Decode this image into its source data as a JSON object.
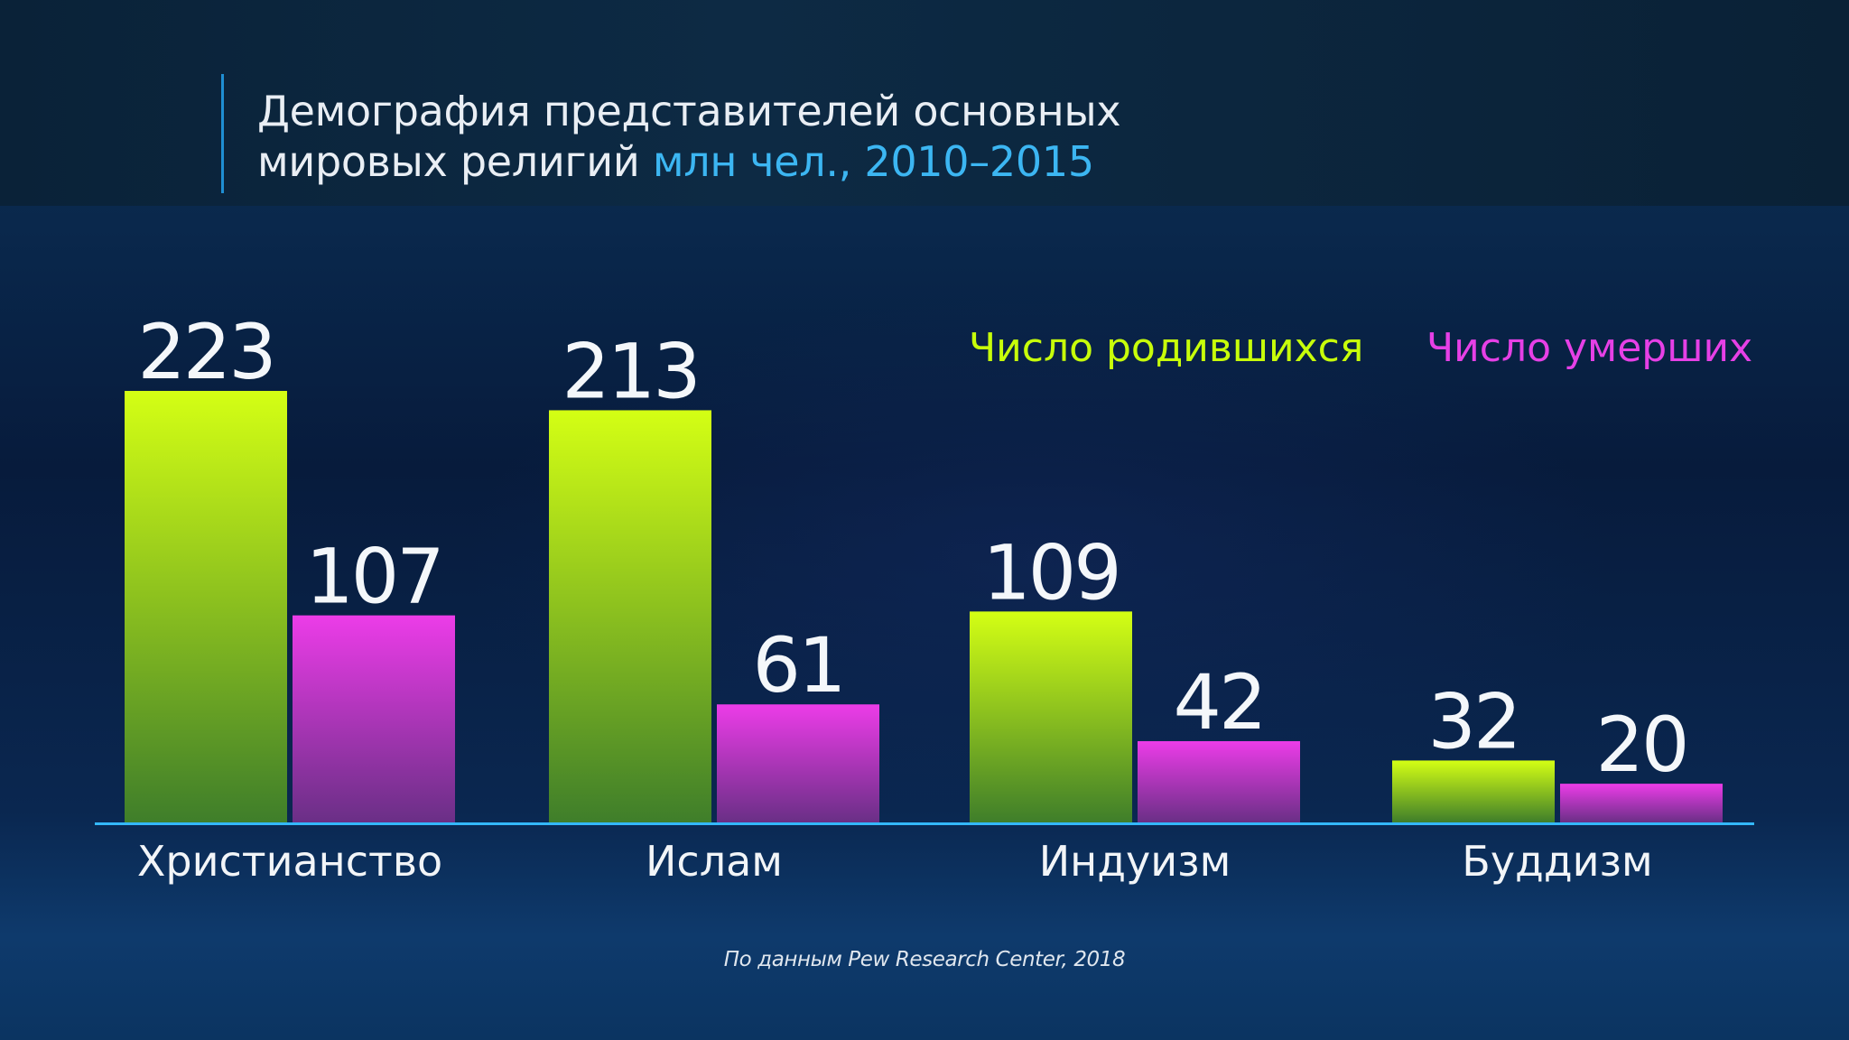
{
  "title": {
    "line1": "Демография представителей основных",
    "line2_main": "мировых религий",
    "line2_accent": "млн чел., 2010–2015"
  },
  "colors": {
    "births": "#d4ff14",
    "deaths": "#ec3ce8",
    "axis": "#34b8ff",
    "accent_text": "#3cb6f2"
  },
  "chart_data": {
    "type": "bar",
    "categories": [
      "Христианство",
      "Ислам",
      "Индуизм",
      "Буддизм"
    ],
    "series": [
      {
        "name": "Число родившихся",
        "values": [
          223,
          213,
          109,
          32
        ]
      },
      {
        "name": "Число умерших",
        "values": [
          107,
          61,
          42,
          20
        ]
      }
    ],
    "ylim": [
      0,
      223
    ],
    "legend": "top-right",
    "grid": false,
    "data_labels": true
  },
  "source": "По данным Pew Research Center, 2018"
}
